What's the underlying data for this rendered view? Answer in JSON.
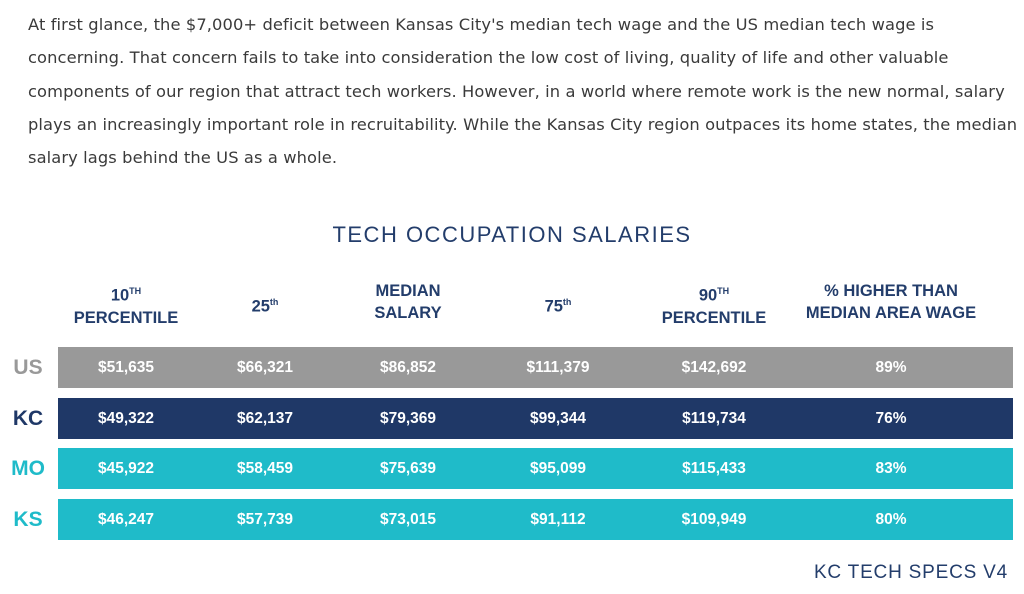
{
  "paragraph": "At first glance, the $7,000+ deficit between Kansas City's median tech wage and the US median tech wage is concerning. That concern fails to take into consideration the low cost of living, quality of life and other valuable components of our region that attract tech workers. However, in a world where remote work is the new normal, salary plays an increasingly important role in recruitability. While the Kansas City region outpaces its home states, the median salary lags behind the US as a whole.",
  "title": "TECH OCCUPATION SALARIES",
  "columns": [
    {
      "line1": "10",
      "sup": "TH",
      "line2": "PERCENTILE"
    },
    {
      "line1": "25",
      "sup": "th",
      "line2": ""
    },
    {
      "line1": "MEDIAN",
      "sup": "",
      "line2": "SALARY"
    },
    {
      "line1": "75",
      "sup": "th",
      "line2": ""
    },
    {
      "line1": "90",
      "sup": "TH",
      "line2": "PERCENTILE"
    },
    {
      "line1": "% HIGHER THAN",
      "sup": "",
      "line2": "MEDIAN AREA WAGE"
    }
  ],
  "rows": [
    {
      "label": "US",
      "color": "#999999",
      "label_color": "#999999",
      "values": [
        "$51,635",
        "$66,321",
        "$86,852",
        "$111,379",
        "$142,692",
        "89%"
      ]
    },
    {
      "label": "KC",
      "color": "#1f3867",
      "label_color": "#1f3867",
      "values": [
        "$49,322",
        "$62,137",
        "$79,369",
        "$99,344",
        "$119,734",
        "76%"
      ]
    },
    {
      "label": "MO",
      "color": "#1fbbc9",
      "label_color": "#1fbbc9",
      "values": [
        "$45,922",
        "$58,459",
        "$75,639",
        "$95,099",
        "$115,433",
        "83%"
      ]
    },
    {
      "label": "KS",
      "color": "#1fbbc9",
      "label_color": "#1fbbc9",
      "values": [
        "$46,247",
        "$57,739",
        "$73,015",
        "$91,112",
        "$109,949",
        "80%"
      ]
    }
  ],
  "footer": "KC TECH SPECS V4"
}
